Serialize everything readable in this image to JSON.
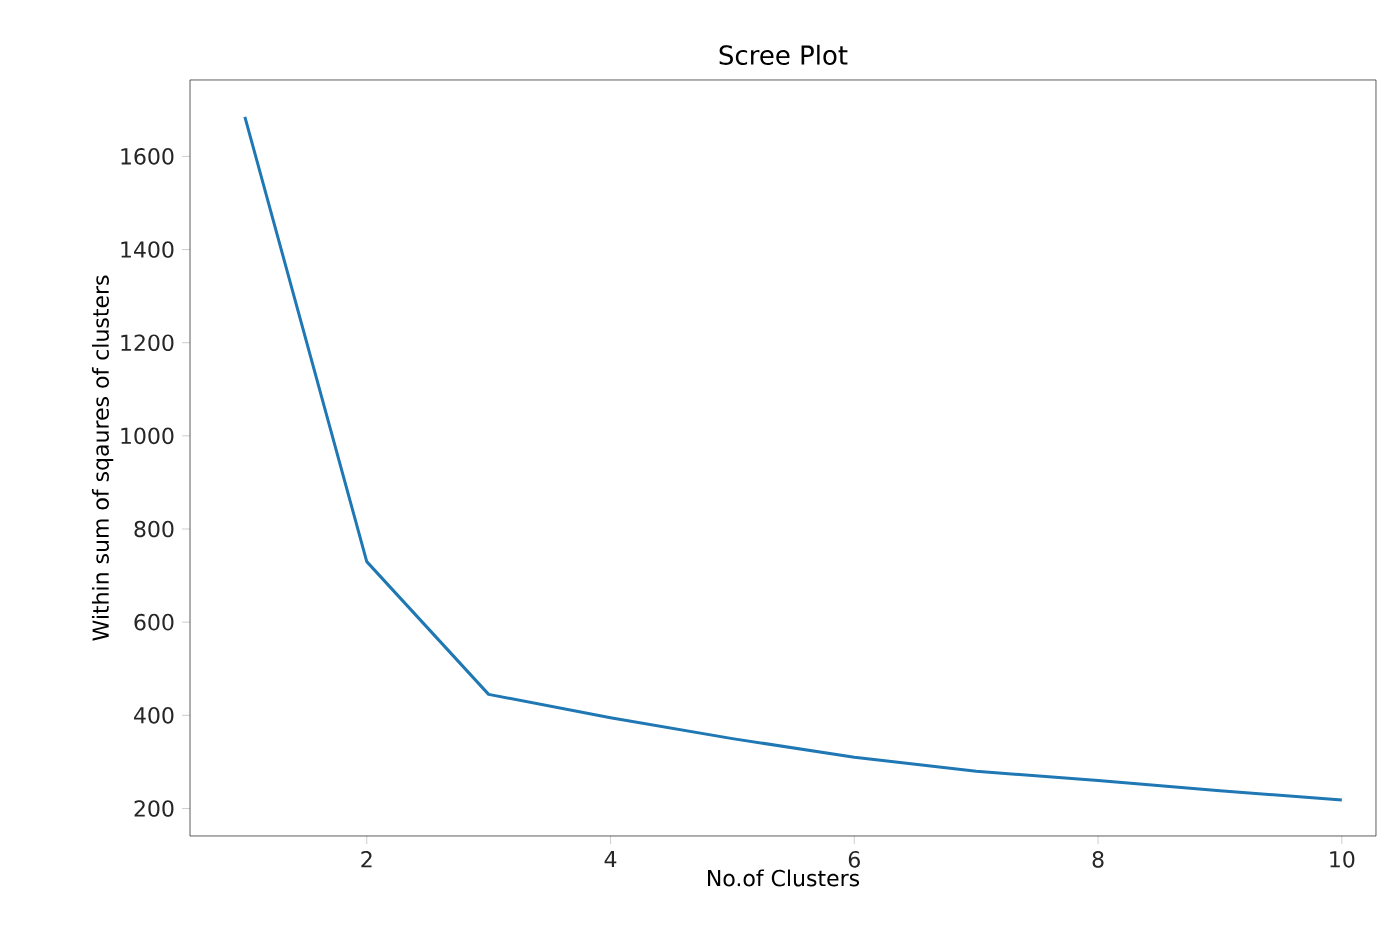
{
  "chart_data": {
    "type": "line",
    "title": "Scree Plot",
    "xlabel": "No.of Clusters",
    "ylabel": "Within sum of sqaures of clusters",
    "x": [
      1,
      2,
      3,
      4,
      5,
      6,
      7,
      8,
      9,
      10
    ],
    "series": [
      {
        "color": "#1f77b4",
        "values": [
          1685,
          730,
          445,
          395,
          350,
          310,
          280,
          260,
          238,
          218
        ]
      }
    ],
    "xlim": [
      0.55,
      10.28
    ],
    "ylim": [
      141,
      1764
    ],
    "xticks": [
      2,
      4,
      6,
      8,
      10
    ],
    "yticks": [
      200,
      400,
      600,
      800,
      1000,
      1200,
      1400,
      1600
    ],
    "grid": false,
    "marker": "none",
    "line_style": "solid"
  }
}
